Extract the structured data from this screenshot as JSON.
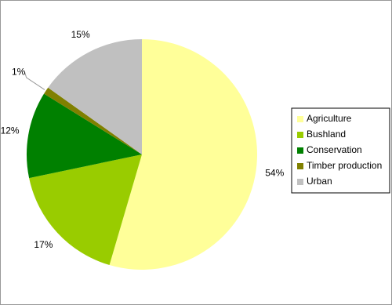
{
  "chart_data": {
    "type": "pie",
    "categories": [
      "Agriculture",
      "Bushland",
      "Conservation",
      "Timber production",
      "Urban"
    ],
    "values": [
      54,
      17,
      12,
      1,
      15
    ],
    "value_labels": [
      "54%",
      "17%",
      "12%",
      "1%",
      "15%"
    ],
    "colors": [
      "#ffff99",
      "#99cc00",
      "#008000",
      "#808000",
      "#c0c0c0"
    ],
    "legend": "right"
  }
}
